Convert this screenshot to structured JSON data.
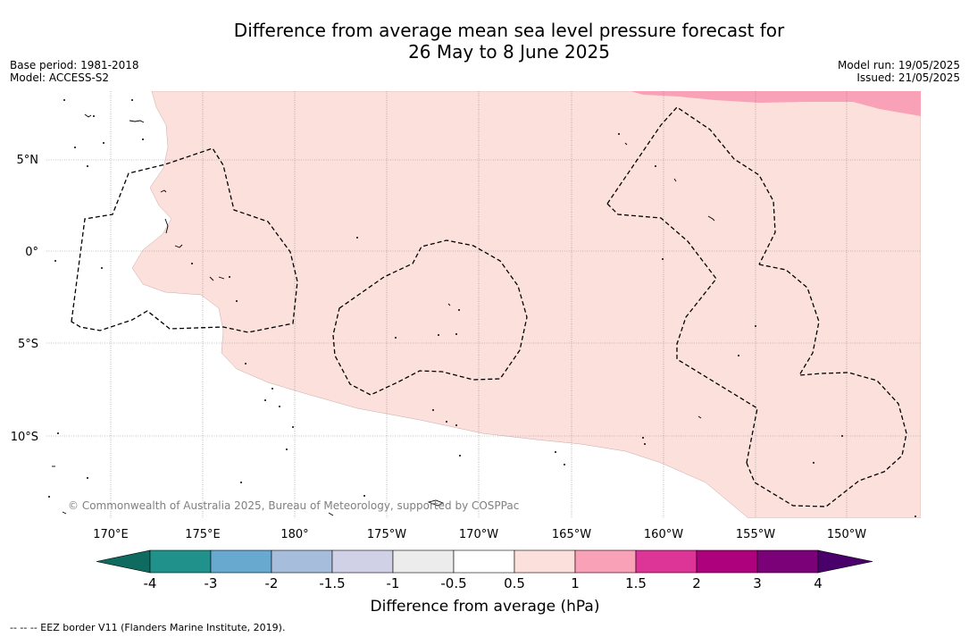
{
  "header": {
    "title_line1": "Difference from average mean sea level pressure forecast for",
    "title_line2": "26 May to 8 June 2025",
    "base_period": "Base period: 1981-2018",
    "model": "Model: ACCESS-S2",
    "model_run": "Model run: 19/05/2025",
    "issued": "Issued: 21/05/2025"
  },
  "map": {
    "latitude_labels": [
      "5°N",
      "0°",
      "5°S",
      "10°S"
    ],
    "longitude_labels": [
      "170°E",
      "175°E",
      "180°",
      "175°W",
      "170°W",
      "165°W",
      "160°W",
      "155°W",
      "150°W"
    ],
    "copyright": "© Commonwealth of Australia 2025, Bureau of Meteorology, supported by COSPPac",
    "colors": {
      "anomaly_0_5_to_1": "#fce0dc",
      "anomaly_1_to_1_5": "#f9a1b6"
    }
  },
  "colorbar": {
    "title": "Difference from average (hPa)",
    "ticks": [
      "-4",
      "-3",
      "-2",
      "-1.5",
      "-1",
      "-0.5",
      "0.5",
      "1",
      "1.5",
      "2",
      "3",
      "4"
    ],
    "colors": [
      "#0f6b5f",
      "#21918c",
      "#67a9cf",
      "#a6bddb",
      "#d0d1e6",
      "#ececec",
      "#ffffff",
      "#fce0dc",
      "#f9a1b6",
      "#dd3497",
      "#ae017e",
      "#7a0177",
      "#49006a"
    ]
  },
  "footnote": "-- -- -- EEZ border V11 (Flanders Marine Institute, 2019)."
}
